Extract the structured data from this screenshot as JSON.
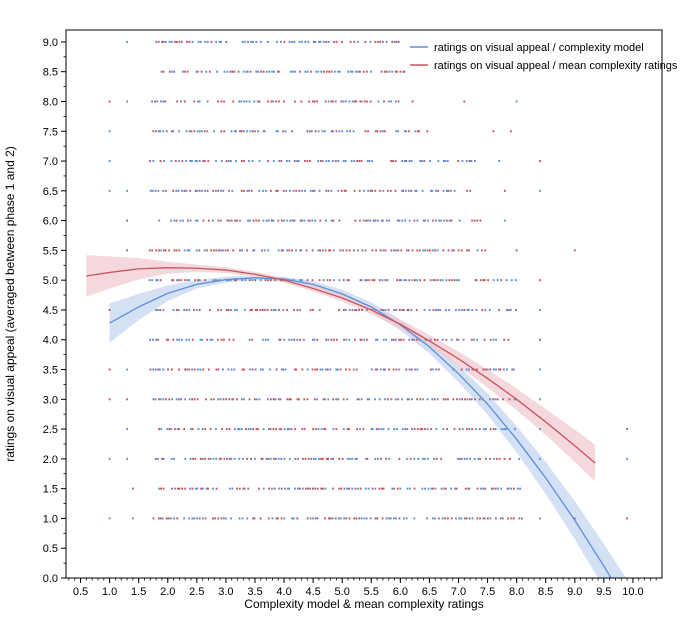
{
  "chart_data": {
    "type": "scatter",
    "xlabel": "Complexity model & mean complexity ratings",
    "ylabel": "ratings on visual appeal (averaged between phase 1 and 2)",
    "xlim": [
      0.25,
      10.5
    ],
    "ylim": [
      0,
      9.2
    ],
    "x_ticks": [
      "0.5",
      "1.0",
      "1.5",
      "2.0",
      "2.5",
      "3.0",
      "3.5",
      "4.0",
      "4.5",
      "5.0",
      "5.5",
      "6.0",
      "6.5",
      "7.0",
      "7.5",
      "8.0",
      "8.5",
      "9.0",
      "9.5",
      "10.0"
    ],
    "y_ticks": [
      "0.0",
      "0.5",
      "1.0",
      "1.5",
      "2.0",
      "2.5",
      "3.0",
      "3.5",
      "4.0",
      "4.5",
      "5.0",
      "5.5",
      "6.0",
      "6.5",
      "7.0",
      "7.5",
      "8.0",
      "8.5",
      "9.0"
    ],
    "grid": false,
    "legend_position": "top-right",
    "colors": {
      "blue": "#5b8fdc",
      "red": "#c9545e",
      "blue_band": "#c5d5f0",
      "red_band": "#f0cbcf"
    },
    "series": [
      {
        "name": "ratings on visual appeal / complexity model",
        "color": "#5b8fdc",
        "fit_x": [
          1.0,
          1.5,
          2.0,
          2.5,
          3.0,
          3.5,
          4.0,
          4.5,
          5.0,
          5.5,
          6.0,
          6.5,
          7.0,
          7.5,
          8.0,
          8.5,
          9.0,
          9.5,
          9.9
        ],
        "fit_y": [
          4.28,
          4.55,
          4.78,
          4.93,
          5.01,
          5.04,
          5.02,
          4.93,
          4.77,
          4.55,
          4.25,
          3.88,
          3.43,
          2.92,
          2.33,
          1.68,
          0.97,
          0.2,
          -0.45
        ],
        "ci_halfwidth": [
          0.33,
          0.22,
          0.13,
          0.07,
          0.05,
          0.04,
          0.04,
          0.05,
          0.07,
          0.08,
          0.09,
          0.11,
          0.14,
          0.18,
          0.22,
          0.27,
          0.32,
          0.37,
          0.42
        ]
      },
      {
        "name": "ratings on visual appeal / mean complexity ratings",
        "color": "#c9545e",
        "fit_x": [
          0.6,
          1.0,
          1.5,
          2.0,
          2.5,
          3.0,
          3.5,
          4.0,
          4.5,
          5.0,
          5.5,
          6.0,
          6.5,
          7.0,
          7.5,
          8.0,
          8.5,
          9.0,
          9.35
        ],
        "fit_y": [
          5.07,
          5.13,
          5.19,
          5.21,
          5.2,
          5.17,
          5.1,
          5.0,
          4.86,
          4.7,
          4.5,
          4.26,
          3.98,
          3.68,
          3.35,
          3.0,
          2.62,
          2.22,
          1.93
        ],
        "ci_halfwidth": [
          0.35,
          0.27,
          0.18,
          0.1,
          0.06,
          0.05,
          0.04,
          0.04,
          0.05,
          0.06,
          0.07,
          0.08,
          0.1,
          0.12,
          0.15,
          0.18,
          0.22,
          0.27,
          0.31
        ]
      }
    ],
    "scatter_rows": [
      {
        "y": 9.0,
        "x_min": 1.8,
        "x_max": 6.0,
        "extra_x": [
          1.3
        ]
      },
      {
        "y": 8.5,
        "x_min": 1.9,
        "x_max": 6.1,
        "extra_x": []
      },
      {
        "y": 8.0,
        "x_min": 1.7,
        "x_max": 6.2,
        "extra_x": [
          1.0,
          1.3,
          7.1,
          8.0
        ]
      },
      {
        "y": 7.5,
        "x_min": 1.7,
        "x_max": 6.5,
        "extra_x": [
          1.0,
          7.6,
          7.9
        ]
      },
      {
        "y": 7.0,
        "x_min": 1.7,
        "x_max": 7.3,
        "extra_x": [
          1.0,
          7.7,
          8.4
        ]
      },
      {
        "y": 6.5,
        "x_min": 1.7,
        "x_max": 7.2,
        "extra_x": [
          1.0,
          1.3,
          7.8,
          8.4
        ]
      },
      {
        "y": 6.0,
        "x_min": 1.8,
        "x_max": 7.4,
        "extra_x": [
          1.3,
          7.8
        ]
      },
      {
        "y": 5.5,
        "x_min": 1.7,
        "x_max": 7.5,
        "extra_x": [
          1.3,
          8.0,
          9.0
        ]
      },
      {
        "y": 5.0,
        "x_min": 1.7,
        "x_max": 8.0,
        "extra_x": [
          8.4
        ]
      },
      {
        "y": 4.5,
        "x_min": 1.7,
        "x_max": 8.0,
        "extra_x": [
          1.0,
          8.4
        ]
      },
      {
        "y": 4.0,
        "x_min": 1.7,
        "x_max": 7.9,
        "extra_x": [
          8.4
        ]
      },
      {
        "y": 3.5,
        "x_min": 1.7,
        "x_max": 8.0,
        "extra_x": [
          1.0,
          1.3,
          8.4
        ]
      },
      {
        "y": 3.0,
        "x_min": 1.7,
        "x_max": 8.0,
        "extra_x": [
          1.0,
          1.3,
          8.4
        ]
      },
      {
        "y": 2.5,
        "x_min": 1.8,
        "x_max": 8.0,
        "extra_x": [
          1.3,
          8.4,
          9.9
        ]
      },
      {
        "y": 2.0,
        "x_min": 1.8,
        "x_max": 8.1,
        "extra_x": [
          1.0,
          1.3,
          8.4,
          9.9
        ]
      },
      {
        "y": 1.5,
        "x_min": 1.8,
        "x_max": 8.1,
        "extra_x": [
          1.4
        ]
      },
      {
        "y": 1.0,
        "x_min": 1.7,
        "x_max": 8.1,
        "extra_x": [
          1.0,
          1.4,
          8.4,
          9.0,
          9.9
        ]
      }
    ]
  }
}
